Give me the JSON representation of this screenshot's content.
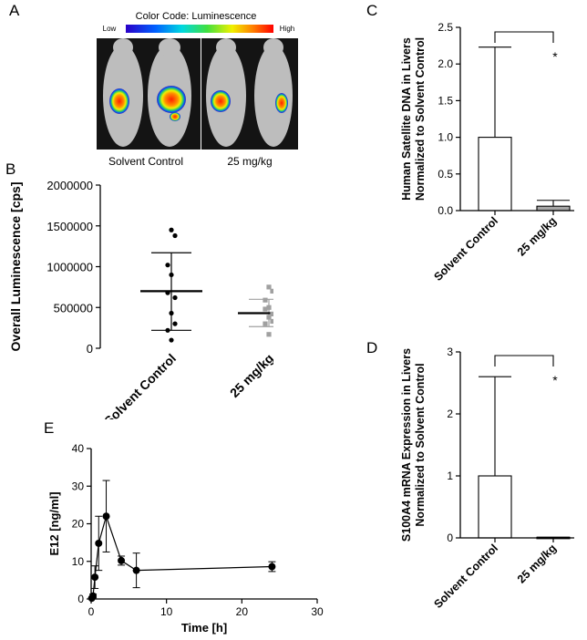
{
  "panels": {
    "A": {
      "letter": "A",
      "color_code_title": "Color Code: Luminescence",
      "low_label": "Low",
      "high_label": "High",
      "group_labels": [
        "Solvent Control",
        "25 mg/kg"
      ]
    },
    "B": {
      "letter": "B"
    },
    "C": {
      "letter": "C"
    },
    "D": {
      "letter": "D"
    },
    "E": {
      "letter": "E"
    }
  },
  "chart_data": [
    {
      "id": "B",
      "type": "scatter",
      "ylabel": "Overall Luminescence [cps]",
      "xlabel": "",
      "categories": [
        "Solvent Control",
        "25 mg/kg"
      ],
      "ylim": [
        0,
        2000000
      ],
      "yticks": [
        0,
        500000,
        1000000,
        1500000,
        2000000
      ],
      "ytick_labels": [
        "0",
        "500000",
        "1000000",
        "1500000",
        "2000000"
      ],
      "series": [
        {
          "values": [
            1450000,
            1380000,
            1020000,
            900000,
            680000,
            620000,
            430000,
            300000,
            220000,
            100000
          ],
          "mean": 700000,
          "sd_low": 220000,
          "sd_high": 1170000,
          "color": "#000000"
        },
        {
          "values": [
            750000,
            700000,
            590000,
            500000,
            480000,
            420000,
            380000,
            330000,
            300000,
            170000
          ],
          "mean": 430000,
          "sd_low": 265000,
          "sd_high": 600000,
          "color": "#a0a0a0"
        }
      ]
    },
    {
      "id": "C",
      "type": "bar",
      "ylabel": "Human Satellite DNA in Livers Normalized to Solvent Control",
      "xlabel": "",
      "categories": [
        "Solvent Control",
        "25 mg/kg"
      ],
      "values": [
        1.0,
        0.06
      ],
      "error_high": [
        2.23,
        0.14
      ],
      "bar_colors": [
        "#ffffff",
        "#a6a6a6"
      ],
      "ylim": [
        0,
        2.5
      ],
      "yticks": [
        0.0,
        0.5,
        1.0,
        1.5,
        2.0,
        2.5
      ],
      "ytick_labels": [
        "0.0",
        "0.5",
        "1.0",
        "1.5",
        "2.0",
        "2.5"
      ],
      "significance": "*"
    },
    {
      "id": "D",
      "type": "bar",
      "ylabel": "S100A4 mRNA Expression in Livers Normalized to Solvent Control",
      "xlabel": "",
      "categories": [
        "Solvent Control",
        "25 mg/kg"
      ],
      "values": [
        1.0,
        0.01
      ],
      "error_high": [
        2.6,
        0.01
      ],
      "bar_colors": [
        "#ffffff",
        "#a6a6a6"
      ],
      "ylim": [
        0,
        3
      ],
      "yticks": [
        0,
        1,
        2,
        3
      ],
      "ytick_labels": [
        "0",
        "1",
        "2",
        "3"
      ],
      "significance": "*"
    },
    {
      "id": "E",
      "type": "line",
      "xlabel": "Time [h]",
      "ylabel": "E12 [ng/ml]",
      "xlim": [
        0,
        30
      ],
      "ylim": [
        0,
        40
      ],
      "xticks": [
        0,
        10,
        20,
        30
      ],
      "yticks": [
        0,
        10,
        20,
        30,
        40
      ],
      "xtick_labels": [
        "0",
        "10",
        "20",
        "30"
      ],
      "ytick_labels": [
        "0",
        "10",
        "20",
        "30",
        "40"
      ],
      "x": [
        0.08,
        0.25,
        0.5,
        1,
        2,
        4,
        6,
        24
      ],
      "y": [
        0.2,
        0.8,
        5.8,
        14.8,
        22,
        10.2,
        7.6,
        8.6
      ],
      "err": [
        0.2,
        0.5,
        3.0,
        7.2,
        9.5,
        1.2,
        4.6,
        1.3
      ]
    }
  ]
}
